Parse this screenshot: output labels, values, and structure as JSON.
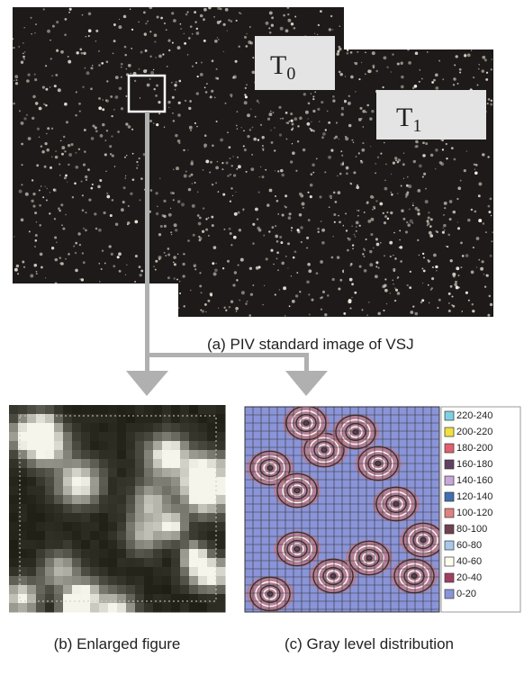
{
  "image_a": {
    "frames": [
      {
        "label": "T",
        "subscript": "0"
      },
      {
        "label": "T",
        "subscript": "1"
      }
    ],
    "caption": "(a) PIV standard image of VSJ"
  },
  "image_b": {
    "caption": "(b) Enlarged figure"
  },
  "image_c": {
    "caption": "(c) Gray level distribution",
    "legend": [
      {
        "label": "220-240",
        "color": "#7fd0e0"
      },
      {
        "label": "200-220",
        "color": "#f0e040"
      },
      {
        "label": "180-200",
        "color": "#e06070"
      },
      {
        "label": "160-180",
        "color": "#604060"
      },
      {
        "label": "140-160",
        "color": "#c8a8d8"
      },
      {
        "label": "120-140",
        "color": "#4070b0"
      },
      {
        "label": "100-120",
        "color": "#e08080"
      },
      {
        "label": "80-100",
        "color": "#704050"
      },
      {
        "label": "60-80",
        "color": "#a8c8e8"
      },
      {
        "label": "40-60",
        "color": "#fffff0"
      },
      {
        "label": "20-40",
        "color": "#a04060"
      },
      {
        "label": "0-20",
        "color": "#8a94d8"
      }
    ]
  }
}
